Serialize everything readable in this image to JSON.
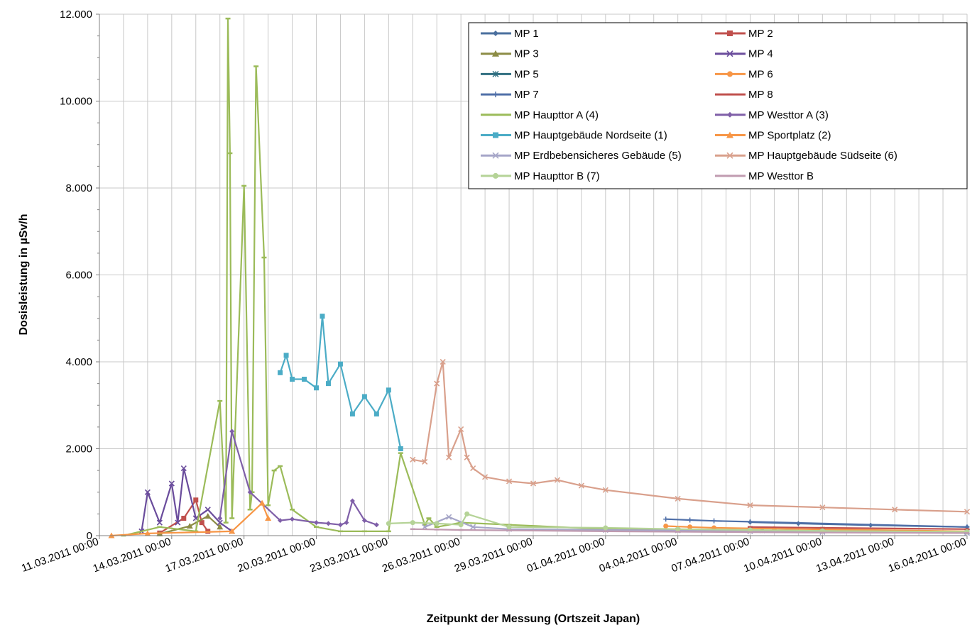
{
  "chart_data": {
    "type": "scatter",
    "title": "",
    "xlabel": "Zeitpunkt der Messung (Ortszeit Japan)",
    "ylabel": "Dosisleistung in µSv/h",
    "xlim": [
      "11.03.2011 00:00",
      "16.04.2011 00:00"
    ],
    "ylim": [
      0,
      12000
    ],
    "x_ticks": [
      "11.03.2011 00:00",
      "14.03.2011 00:00",
      "17.03.2011 00:00",
      "20.03.2011 00:00",
      "23.03.2011 00:00",
      "26.03.2011 00:00",
      "29.03.2011 00:00",
      "01.04.2011 00:00",
      "04.04.2011 00:00",
      "07.04.2011 00:00",
      "10.04.2011 00:00",
      "13.04.2011 00:00",
      "16.04.2011 00:00"
    ],
    "y_ticks": [
      "0",
      "2.000",
      "4.000",
      "6.000",
      "8.000",
      "10.000",
      "12.000"
    ],
    "y_tick_values": [
      0,
      2000,
      4000,
      6000,
      8000,
      10000,
      12000
    ],
    "grid": true,
    "legend_position": "top-right",
    "series": [
      {
        "name": "MP 1",
        "color": "#4a6f9e",
        "marker": "diamond",
        "x": [
          "07.04.2011 00:00",
          "09.04.2011 00:00",
          "12.04.2011 00:00",
          "16.04.2011 00:00"
        ],
        "values": [
          310,
          280,
          240,
          200
        ]
      },
      {
        "name": "MP 2",
        "color": "#c0504d",
        "marker": "square",
        "x": [
          "13.03.2011 12:00",
          "14.03.2011 12:00",
          "15.03.2011 00:00",
          "15.03.2011 06:00",
          "15.03.2011 12:00"
        ],
        "values": [
          60,
          400,
          820,
          300,
          100
        ]
      },
      {
        "name": "MP 3",
        "color": "#8c8c45",
        "marker": "triangle",
        "x": [
          "13.03.2011 12:00",
          "14.03.2011 18:00",
          "15.03.2011 12:00",
          "16.03.2011 00:00"
        ],
        "values": [
          40,
          220,
          450,
          200
        ]
      },
      {
        "name": "MP 4",
        "color": "#6a4c9c",
        "marker": "cross",
        "x": [
          "12.03.2011 18:00",
          "13.03.2011 00:00",
          "13.03.2011 12:00",
          "14.03.2011 00:00",
          "14.03.2011 06:00",
          "14.03.2011 12:00",
          "15.03.2011 00:00",
          "15.03.2011 12:00",
          "16.03.2011 00:00",
          "16.03.2011 12:00"
        ],
        "values": [
          100,
          1000,
          300,
          1200,
          300,
          1550,
          400,
          600,
          300,
          100
        ]
      },
      {
        "name": "MP 5",
        "color": "#2f6e80",
        "marker": "asterisk",
        "x": [
          "07.04.2011 12:00",
          "10.04.2011 00:00",
          "16.04.2011 00:00"
        ],
        "values": [
          120,
          110,
          90
        ]
      },
      {
        "name": "MP 6",
        "color": "#f79646",
        "marker": "circle",
        "x": [
          "03.04.2011 12:00",
          "04.04.2011 12:00",
          "05.04.2011 12:00",
          "08.04.2011 00:00",
          "16.04.2011 00:00"
        ],
        "values": [
          220,
          200,
          180,
          160,
          100
        ]
      },
      {
        "name": "MP 7",
        "color": "#4f6fa8",
        "marker": "plus",
        "x": [
          "03.04.2011 12:00",
          "04.04.2011 12:00",
          "05.04.2011 12:00",
          "07.04.2011 00:00",
          "16.04.2011 00:00"
        ],
        "values": [
          380,
          360,
          340,
          320,
          200
        ]
      },
      {
        "name": "MP 8",
        "color": "#c0504d",
        "marker": "dash",
        "x": [
          "07.04.2011 00:00",
          "10.04.2011 00:00",
          "16.04.2011 00:00"
        ],
        "values": [
          200,
          180,
          150
        ]
      },
      {
        "name": "MP Haupttor A (4)",
        "color": "#9bbb59",
        "marker": "dash",
        "x": [
          "12.03.2011 00:00",
          "13.03.2011 12:00",
          "15.03.2011 00:00",
          "16.03.2011 00:00",
          "16.03.2011 06:00",
          "16.03.2011 08:00",
          "16.03.2011 10:00",
          "16.03.2011 12:00",
          "17.03.2011 00:00",
          "17.03.2011 06:00",
          "17.03.2011 08:00",
          "17.03.2011 12:00",
          "17.03.2011 20:00",
          "18.03.2011 00:00",
          "18.03.2011 06:00",
          "18.03.2011 12:00",
          "19.03.2011 00:00",
          "20.03.2011 00:00",
          "21.03.2011 00:00",
          "22.03.2011 00:00",
          "23.03.2011 00:00",
          "23.03.2011 12:00",
          "24.03.2011 12:00",
          "24.03.2011 16:00",
          "25.03.2011 00:00",
          "26.03.2011 00:00",
          "28.03.2011 00:00",
          "01.04.2011 00:00",
          "04.04.2011 00:00",
          "07.04.2011 00:00"
        ],
        "values": [
          0,
          200,
          100,
          3100,
          300,
          11900,
          8800,
          400,
          8050,
          600,
          1000,
          10800,
          6400,
          700,
          1500,
          1600,
          600,
          200,
          100,
          100,
          100,
          1900,
          250,
          400,
          200,
          300,
          250,
          150,
          120,
          100
        ]
      },
      {
        "name": "MP Westtor A (3)",
        "color": "#7f5fa8",
        "marker": "diamond",
        "x": [
          "16.03.2011 00:00",
          "16.03.2011 12:00",
          "17.03.2011 06:00",
          "18.03.2011 12:00",
          "19.03.2011 00:00",
          "20.03.2011 00:00",
          "20.03.2011 12:00",
          "21.03.2011 00:00",
          "21.03.2011 06:00",
          "21.03.2011 12:00",
          "22.03.2011 00:00",
          "22.03.2011 12:00"
        ],
        "values": [
          400,
          2400,
          1000,
          350,
          380,
          300,
          280,
          250,
          300,
          800,
          350,
          250
        ]
      },
      {
        "name": "MP Hauptgebäude Nordseite (1)",
        "color": "#4bacc6",
        "marker": "square",
        "x": [
          "18.03.2011 12:00",
          "18.03.2011 18:00",
          "19.03.2011 00:00",
          "19.03.2011 12:00",
          "20.03.2011 00:00",
          "20.03.2011 06:00",
          "20.03.2011 12:00",
          "21.03.2011 00:00",
          "21.03.2011 12:00",
          "22.03.2011 00:00",
          "22.03.2011 12:00",
          "23.03.2011 00:00",
          "23.03.2011 12:00"
        ],
        "values": [
          3750,
          4150,
          3600,
          3600,
          3400,
          5050,
          3500,
          3950,
          2800,
          3200,
          2800,
          3350,
          2000
        ]
      },
      {
        "name": "MP Sportplatz (2)",
        "color": "#f79646",
        "marker": "triangle",
        "x": [
          "11.03.2011 12:00",
          "13.03.2011 00:00",
          "16.03.2011 12:00",
          "17.03.2011 18:00",
          "18.03.2011 00:00"
        ],
        "values": [
          0,
          50,
          100,
          750,
          400
        ]
      },
      {
        "name": "MP Erdbebensicheres Gebäude (5)",
        "color": "#a6a6c8",
        "marker": "x",
        "x": [
          "24.03.2011 12:00",
          "25.03.2011 12:00",
          "26.03.2011 12:00",
          "28.03.2011 00:00",
          "01.04.2011 00:00",
          "04.04.2011 00:00",
          "07.04.2011 00:00",
          "10.04.2011 00:00",
          "16.04.2011 00:00"
        ],
        "values": [
          200,
          430,
          200,
          150,
          130,
          120,
          100,
          80,
          60
        ]
      },
      {
        "name": "MP Hauptgebäude Südseite (6)",
        "color": "#d9a08c",
        "marker": "x",
        "x": [
          "24.03.2011 00:00",
          "24.03.2011 12:00",
          "25.03.2011 00:00",
          "25.03.2011 06:00",
          "25.03.2011 12:00",
          "26.03.2011 00:00",
          "26.03.2011 06:00",
          "26.03.2011 12:00",
          "27.03.2011 00:00",
          "28.03.2011 00:00",
          "29.03.2011 00:00",
          "30.03.2011 00:00",
          "31.03.2011 00:00",
          "01.04.2011 00:00",
          "04.04.2011 00:00",
          "07.04.2011 00:00",
          "10.04.2011 00:00",
          "13.04.2011 00:00",
          "16.04.2011 00:00"
        ],
        "values": [
          1750,
          1700,
          3500,
          4000,
          1800,
          2450,
          1800,
          1550,
          1350,
          1250,
          1200,
          1280,
          1150,
          1050,
          850,
          700,
          650,
          600,
          550
        ]
      },
      {
        "name": "MP Haupttor B (7)",
        "color": "#b5d397",
        "marker": "circle",
        "x": [
          "23.03.2011 00:00",
          "24.03.2011 00:00",
          "25.03.2011 00:00",
          "26.03.2011 00:00",
          "26.03.2011 06:00",
          "28.03.2011 00:00",
          "01.04.2011 00:00",
          "04.04.2011 00:00",
          "07.04.2011 00:00",
          "10.04.2011 00:00",
          "16.04.2011 00:00"
        ],
        "values": [
          280,
          300,
          280,
          250,
          500,
          200,
          180,
          150,
          130,
          110,
          90
        ]
      },
      {
        "name": "MP Westtor B",
        "color": "#c09bb0",
        "marker": "dash",
        "x": [
          "24.03.2011 00:00",
          "25.03.2011 00:00",
          "26.03.2011 00:00",
          "28.03.2011 00:00",
          "01.04.2011 00:00",
          "04.04.2011 00:00",
          "07.04.2011 00:00",
          "10.04.2011 00:00",
          "16.04.2011 00:00"
        ],
        "values": [
          150,
          140,
          130,
          120,
          100,
          90,
          80,
          70,
          60
        ]
      }
    ]
  }
}
